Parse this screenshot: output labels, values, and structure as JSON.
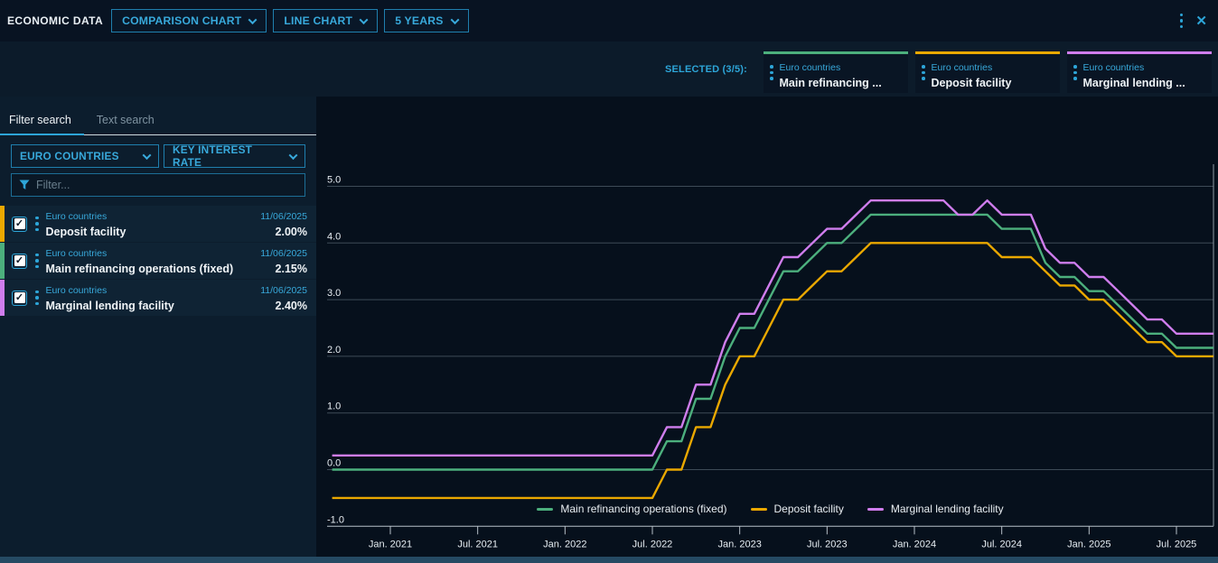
{
  "colors": {
    "accent": "#2da5d8",
    "green": "#4caf7d",
    "yellow": "#eaa800",
    "purple": "#cf7ded"
  },
  "top_bar": {
    "title": "ECONOMIC DATA",
    "chart_type_dropdown": "COMPARISON CHART",
    "style_dropdown": "LINE CHART",
    "range_dropdown": "5 YEARS"
  },
  "selected_bar": {
    "label": "SELECTED (3/5):",
    "chips": [
      {
        "category": "Euro countries",
        "name": "Main refinancing ...",
        "color": "#4caf7d"
      },
      {
        "category": "Euro countries",
        "name": "Deposit facility",
        "color": "#eaa800"
      },
      {
        "category": "Euro countries",
        "name": "Marginal lending ...",
        "color": "#cf7ded"
      }
    ]
  },
  "sidebar": {
    "tabs": [
      {
        "label": "Filter search",
        "active": true
      },
      {
        "label": "Text search",
        "active": false
      }
    ],
    "category_dropdown": "EURO COUNTRIES",
    "dataset_dropdown": "KEY INTEREST RATE",
    "filter_placeholder": "Filter...",
    "items": [
      {
        "category": "Euro countries",
        "name": "Deposit facility",
        "date": "11/06/2025",
        "value": "2.00%",
        "color": "#eaa800",
        "checked": true
      },
      {
        "category": "Euro countries",
        "name": "Main refinancing operations (fixed)",
        "date": "11/06/2025",
        "value": "2.15%",
        "color": "#4caf7d",
        "checked": true
      },
      {
        "category": "Euro countries",
        "name": "Marginal lending facility",
        "date": "11/06/2025",
        "value": "2.40%",
        "color": "#cf7ded",
        "checked": true
      }
    ]
  },
  "chart_data": {
    "type": "line",
    "title": "",
    "xlabel": "",
    "ylabel": "",
    "ylim": [
      -1.0,
      5.0
    ],
    "x_range": [
      "2020-09",
      "2025-10"
    ],
    "grid": true,
    "legend_position": "bottom-center",
    "y_ticks": [
      5.0,
      4.0,
      3.0,
      2.0,
      1.0,
      0.0,
      -1.0
    ],
    "x_ticks": [
      "Jan. 2021",
      "Jul. 2021",
      "Jan. 2022",
      "Jul. 2022",
      "Jan. 2023",
      "Jul. 2023",
      "Jan. 2024",
      "Jul. 2024",
      "Jan. 2025",
      "Jul. 2025"
    ],
    "series": [
      {
        "name": "Main refinancing operations (fixed)",
        "color": "#4caf7d",
        "unit": "%",
        "points": [
          [
            "2020-09",
            0.0
          ],
          [
            "2022-08",
            0.5
          ],
          [
            "2022-10",
            1.25
          ],
          [
            "2022-12",
            2.0
          ],
          [
            "2023-01",
            2.5
          ],
          [
            "2023-03",
            3.0
          ],
          [
            "2023-04",
            3.5
          ],
          [
            "2023-06",
            3.75
          ],
          [
            "2023-07",
            4.0
          ],
          [
            "2023-09",
            4.25
          ],
          [
            "2023-10",
            4.5
          ],
          [
            "2024-07",
            4.25
          ],
          [
            "2024-10",
            3.65
          ],
          [
            "2024-11",
            3.4
          ],
          [
            "2025-01",
            3.15
          ],
          [
            "2025-03",
            2.9
          ],
          [
            "2025-04",
            2.65
          ],
          [
            "2025-05",
            2.4
          ],
          [
            "2025-07",
            2.15
          ]
        ]
      },
      {
        "name": "Deposit facility",
        "color": "#eaa800",
        "unit": "%",
        "points": [
          [
            "2020-09",
            -0.5
          ],
          [
            "2022-08",
            0.0
          ],
          [
            "2022-10",
            0.75
          ],
          [
            "2022-12",
            1.5
          ],
          [
            "2023-01",
            2.0
          ],
          [
            "2023-03",
            2.5
          ],
          [
            "2023-04",
            3.0
          ],
          [
            "2023-06",
            3.25
          ],
          [
            "2023-07",
            3.5
          ],
          [
            "2023-09",
            3.75
          ],
          [
            "2023-10",
            4.0
          ],
          [
            "2024-07",
            3.75
          ],
          [
            "2024-10",
            3.5
          ],
          [
            "2024-11",
            3.25
          ],
          [
            "2025-01",
            3.0
          ],
          [
            "2025-03",
            2.75
          ],
          [
            "2025-04",
            2.5
          ],
          [
            "2025-05",
            2.25
          ],
          [
            "2025-07",
            2.0
          ]
        ]
      },
      {
        "name": "Marginal lending facility",
        "color": "#cf7ded",
        "unit": "%",
        "points": [
          [
            "2020-09",
            0.25
          ],
          [
            "2022-08",
            0.75
          ],
          [
            "2022-10",
            1.5
          ],
          [
            "2022-12",
            2.25
          ],
          [
            "2023-01",
            2.75
          ],
          [
            "2023-03",
            3.25
          ],
          [
            "2023-04",
            3.75
          ],
          [
            "2023-06",
            4.0
          ],
          [
            "2023-07",
            4.25
          ],
          [
            "2023-09",
            4.5
          ],
          [
            "2023-10",
            4.75
          ],
          [
            "2024-04",
            4.5
          ],
          [
            "2024-06",
            4.75
          ],
          [
            "2024-07",
            4.5
          ],
          [
            "2024-10",
            3.9
          ],
          [
            "2024-11",
            3.65
          ],
          [
            "2025-01",
            3.4
          ],
          [
            "2025-03",
            3.15
          ],
          [
            "2025-04",
            2.9
          ],
          [
            "2025-05",
            2.65
          ],
          [
            "2025-07",
            2.4
          ]
        ]
      }
    ]
  }
}
